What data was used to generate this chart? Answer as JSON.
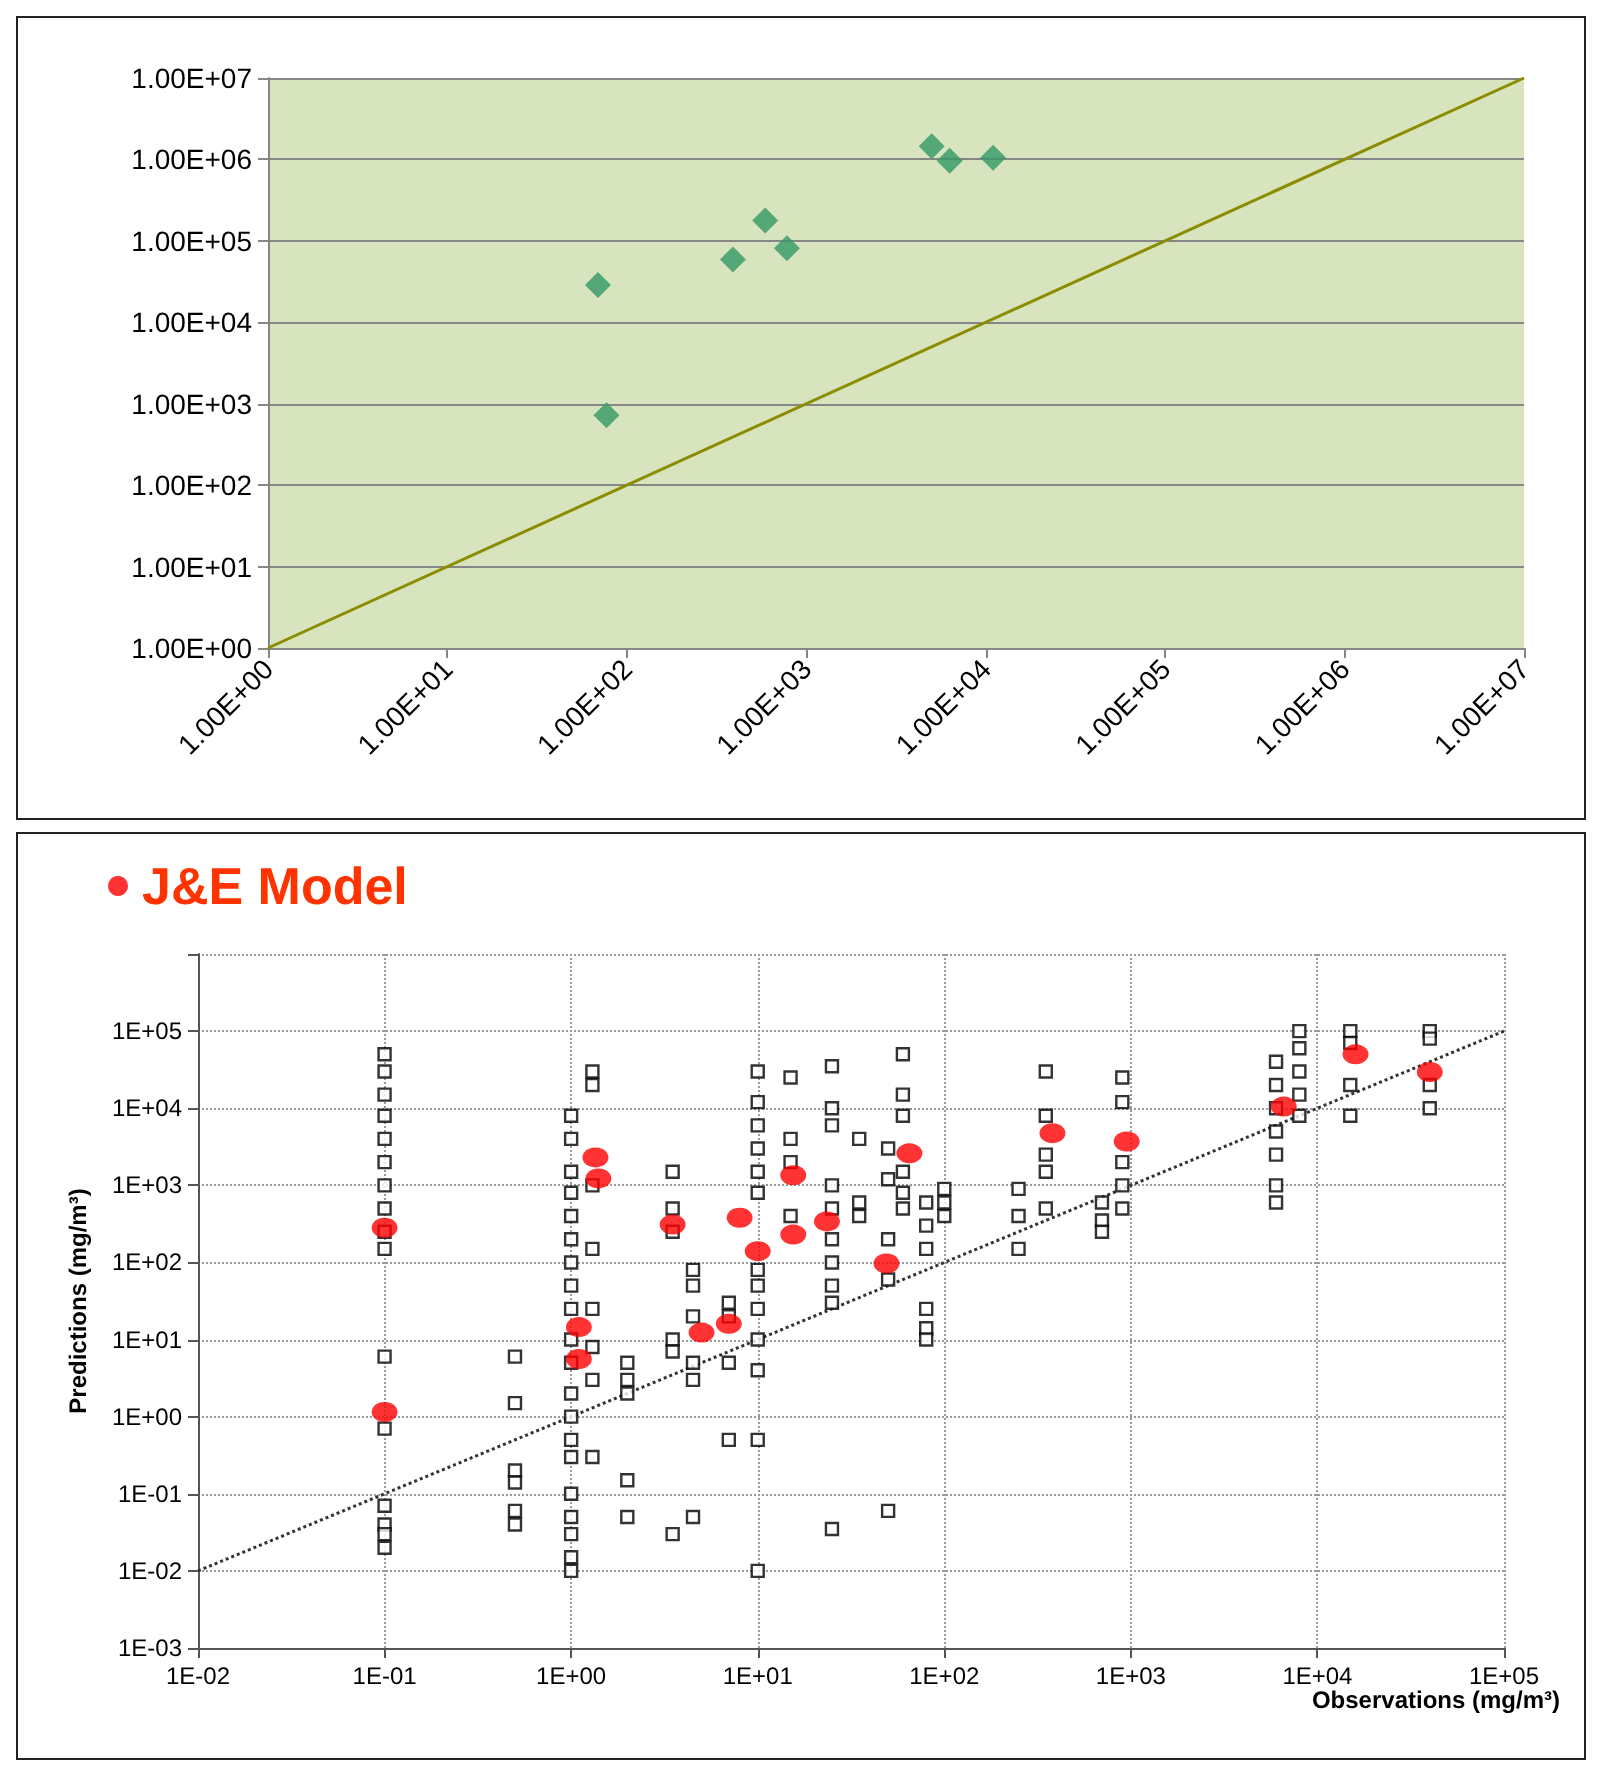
{
  "chart_data": [
    {
      "type": "scatter",
      "marker": "diamond",
      "log": "xy",
      "grid": "y",
      "legend": false,
      "xlim": [
        1,
        10000000
      ],
      "ylim": [
        1,
        10000000
      ],
      "xticks": [
        {
          "value": 1,
          "label": "1.00E+00"
        },
        {
          "value": 10,
          "label": "1.00E+01"
        },
        {
          "value": 100,
          "label": "1.00E+02"
        },
        {
          "value": 1000,
          "label": "1.00E+03"
        },
        {
          "value": 10000,
          "label": "1.00E+04"
        },
        {
          "value": 100000,
          "label": "1.00E+05"
        },
        {
          "value": 1000000,
          "label": "1.00E+06"
        },
        {
          "value": 10000000,
          "label": "1.00E+07"
        }
      ],
      "yticks": [
        {
          "value": 1,
          "label": "1.00E+00"
        },
        {
          "value": 10,
          "label": "1.00E+01"
        },
        {
          "value": 100,
          "label": "1.00E+02"
        },
        {
          "value": 1000,
          "label": "1.00E+03"
        },
        {
          "value": 10000,
          "label": "1.00E+04"
        },
        {
          "value": 100000,
          "label": "1.00E+05"
        },
        {
          "value": 1000000,
          "label": "1.00E+06"
        },
        {
          "value": 10000000,
          "label": "1.00E+07"
        }
      ],
      "series": [
        {
          "color": "#339966",
          "x": [
            69,
            77,
            390,
            590,
            780,
            5000,
            6300,
            11000
          ],
          "values": [
            28800,
            720,
            59000,
            178000,
            81000,
            1450000,
            960000,
            1050000
          ]
        },
        {
          "type": "line",
          "color": "#8c8c00",
          "line_style": "solid",
          "marker": "none",
          "x": [
            1,
            10000000
          ],
          "values": [
            1,
            10000000
          ]
        }
      ]
    },
    {
      "type": "scatter",
      "log": "xy",
      "grid": true,
      "legend": "top left",
      "xlabel": "Observations (mg/m³)",
      "ylabel": "Predictions (mg/m³)",
      "xlim": [
        0.01,
        100000
      ],
      "ylim": [
        0.001,
        1000000
      ],
      "xticks": [
        {
          "value": 0.01,
          "label": "1E-02"
        },
        {
          "value": 0.1,
          "label": "1E-01"
        },
        {
          "value": 1,
          "label": "1E+00"
        },
        {
          "value": 10,
          "label": "1E+01"
        },
        {
          "value": 100,
          "label": "1E+02"
        },
        {
          "value": 1000,
          "label": "1E+03"
        },
        {
          "value": 10000,
          "label": "1E+04"
        },
        {
          "value": 100000,
          "label": "1E+05"
        }
      ],
      "yticks": [
        {
          "value": 0.001,
          "label": "1E-03"
        },
        {
          "value": 0.01,
          "label": "1E-02"
        },
        {
          "value": 0.1,
          "label": "1E-01"
        },
        {
          "value": 1,
          "label": "1E+00"
        },
        {
          "value": 10,
          "label": "1E+01"
        },
        {
          "value": 100,
          "label": "1E+02"
        },
        {
          "value": 1000,
          "label": "1E+03"
        },
        {
          "value": 10000,
          "label": "1E+04"
        },
        {
          "value": 100000,
          "label": "1E+05"
        },
        {
          "value": 1000000,
          "label": null
        }
      ],
      "series": [
        {
          "marker": "square",
          "color": "#000000",
          "x": [
            0.1,
            0.1,
            0.1,
            0.1,
            0.1,
            0.1,
            0.1,
            0.1,
            0.1,
            0.1,
            0.1,
            0.1,
            0.1,
            0.1,
            0.1,
            0.1,
            0.5,
            0.5,
            0.5,
            0.5,
            0.5,
            0.5,
            1,
            1,
            1,
            1,
            1,
            1,
            1,
            1,
            1,
            1,
            1,
            1,
            1,
            1,
            1,
            1,
            1,
            1,
            1,
            1,
            1.3,
            1.3,
            1.3,
            1.3,
            1.3,
            1.3,
            1.3,
            1.3,
            2,
            2,
            2,
            2,
            2,
            3.5,
            3.5,
            3.5,
            3.5,
            3.5,
            3.5,
            4.5,
            4.5,
            4.5,
            4.5,
            4.5,
            4.5,
            7,
            7,
            7,
            7,
            10,
            10,
            10,
            10,
            10,
            10,
            10,
            10,
            10,
            10,
            10,
            10,
            10,
            15,
            15,
            15,
            15,
            25,
            25,
            25,
            25,
            25,
            25,
            25,
            25,
            25,
            25,
            35,
            35,
            35,
            50,
            50,
            50,
            50,
            50,
            60,
            60,
            60,
            60,
            60,
            60,
            80,
            80,
            80,
            80,
            80,
            80,
            100,
            100,
            100,
            250,
            250,
            250,
            350,
            350,
            350,
            350,
            350,
            700,
            700,
            700,
            900,
            900,
            900,
            900,
            900,
            6000,
            6000,
            6000,
            6000,
            6000,
            6000,
            6000,
            8000,
            8000,
            8000,
            8000,
            8000,
            15000,
            15000,
            15000,
            15000,
            40000,
            40000,
            40000,
            40000
          ],
          "values": [
            50000,
            30000,
            15000,
            8000,
            4000,
            2000,
            1000,
            500,
            250,
            150,
            6,
            0.7,
            0.07,
            0.04,
            0.03,
            0.02,
            6,
            1.5,
            0.2,
            0.14,
            0.06,
            0.04,
            8000,
            4000,
            1500,
            800,
            400,
            200,
            100,
            50,
            25,
            10,
            5,
            2,
            1,
            0.5,
            0.3,
            0.1,
            0.05,
            0.03,
            0.015,
            0.01,
            30000,
            20000,
            1000,
            150,
            25,
            8,
            3,
            0.3,
            5,
            3,
            2,
            0.15,
            0.05,
            1500,
            500,
            250,
            10,
            7,
            0.03,
            80,
            50,
            20,
            5,
            3,
            0.05,
            30,
            20,
            5,
            0.5,
            30000,
            12000,
            6000,
            3000,
            1500,
            800,
            80,
            50,
            25,
            10,
            4,
            0.5,
            0.01,
            25000,
            4000,
            2000,
            400,
            35000,
            10000,
            6000,
            1000,
            500,
            200,
            100,
            50,
            30,
            0.035,
            4000,
            600,
            400,
            3000,
            1200,
            200,
            60,
            0.06,
            50000,
            15000,
            8000,
            1500,
            800,
            500,
            600,
            300,
            150,
            25,
            14,
            10,
            900,
            600,
            400,
            900,
            400,
            150,
            30000,
            8000,
            2500,
            1500,
            500,
            600,
            350,
            250,
            25000,
            12000,
            2000,
            1000,
            500,
            40000,
            20000,
            10000,
            5000,
            2500,
            1000,
            600,
            100000,
            60000,
            30000,
            15000,
            8000,
            100000,
            70000,
            20000,
            8000,
            100000,
            80000,
            20000,
            10000
          ]
        },
        {
          "type": "line",
          "color": "#333333",
          "line_style": "dotted",
          "marker": "none",
          "x": [
            0.01,
            100000
          ],
          "values": [
            0.01,
            100000
          ]
        },
        {
          "name": "J&E Model",
          "marker": "circle",
          "color": "#ff0000",
          "x": [
            0.1,
            0.1,
            1.35,
            1.4,
            1.1,
            1.1,
            3.5,
            5,
            7,
            8,
            10,
            15.5,
            15.5,
            23.5,
            49,
            65,
            380,
            950,
            6600,
            16000,
            40000
          ],
          "values": [
            282,
            1.15,
            2300,
            1230,
            14.5,
            5.6,
            310,
            12.3,
            16,
            380,
            140,
            1350,
            230,
            340,
            97,
            2600,
            4750,
            3700,
            10500,
            50000,
            29500
          ]
        }
      ]
    }
  ]
}
